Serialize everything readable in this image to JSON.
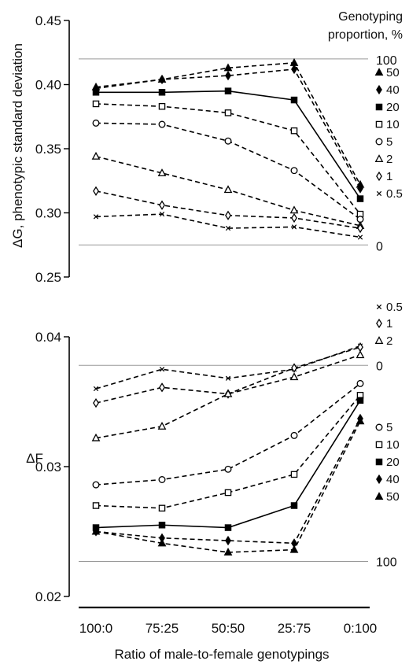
{
  "chart_data": [
    {
      "type": "line",
      "ylabel": "ΔG, phenotypic standard deviation",
      "ylim": [
        0.25,
        0.45
      ],
      "yticks": [
        "0.25",
        "0.30",
        "0.35",
        "0.40",
        "0.45"
      ],
      "categories": [
        "100:0",
        "75:25",
        "50:50",
        "25:75",
        "0:100"
      ],
      "reference_lines": [
        {
          "value": 0.42,
          "label": "100"
        },
        {
          "value": 0.275,
          "label": "0"
        }
      ],
      "legend_title": [
        "Genotyping",
        "proportion, %"
      ],
      "series": [
        {
          "name": "50",
          "marker": "filled-triangle",
          "line": "dashed",
          "values": [
            0.398,
            0.404,
            0.413,
            0.417,
            0.322
          ]
        },
        {
          "name": "40",
          "marker": "filled-diamond",
          "line": "dashed",
          "values": [
            0.397,
            0.404,
            0.407,
            0.412,
            0.319
          ]
        },
        {
          "name": "20",
          "marker": "filled-square",
          "line": "solid",
          "values": [
            0.394,
            0.394,
            0.395,
            0.388,
            0.311
          ]
        },
        {
          "name": "10",
          "marker": "open-square",
          "line": "dashed",
          "values": [
            0.385,
            0.383,
            0.378,
            0.364,
            0.299
          ]
        },
        {
          "name": "5",
          "marker": "open-circle",
          "line": "dashed",
          "values": [
            0.37,
            0.369,
            0.356,
            0.333,
            0.295
          ]
        },
        {
          "name": "2",
          "marker": "open-triangle",
          "line": "dashed",
          "values": [
            0.344,
            0.331,
            0.318,
            0.302,
            0.29
          ]
        },
        {
          "name": "1",
          "marker": "open-diamond",
          "line": "dashed",
          "values": [
            0.317,
            0.306,
            0.298,
            0.296,
            0.288
          ]
        },
        {
          "name": "0.5",
          "marker": "cross",
          "line": "dashed",
          "values": [
            0.297,
            0.299,
            0.288,
            0.289,
            0.281
          ]
        }
      ]
    },
    {
      "type": "line",
      "xlabel": "Ratio of male-to-female genotypings",
      "ylabel": "ΔF",
      "ylim": [
        0.02,
        0.04
      ],
      "yticks": [
        "0.02",
        "0.03",
        "0.04"
      ],
      "categories": [
        "100:0",
        "75:25",
        "50:50",
        "25:75",
        "0:100"
      ],
      "reference_lines": [
        {
          "value": 0.0378,
          "label": "0"
        },
        {
          "value": 0.0227,
          "label": "100"
        }
      ],
      "series": [
        {
          "name": "0.5",
          "marker": "cross",
          "line": "dashed",
          "values": [
            0.036,
            0.0375,
            0.0368,
            0.0375,
            0.0393
          ]
        },
        {
          "name": "1",
          "marker": "open-diamond",
          "line": "dashed",
          "values": [
            0.0349,
            0.0361,
            0.0356,
            0.0376,
            0.0392
          ]
        },
        {
          "name": "2",
          "marker": "open-triangle",
          "line": "dashed",
          "values": [
            0.0322,
            0.0331,
            0.0356,
            0.0369,
            0.0386
          ]
        },
        {
          "name": "5",
          "marker": "open-circle",
          "line": "dashed",
          "values": [
            0.0286,
            0.029,
            0.0298,
            0.0324,
            0.0364
          ]
        },
        {
          "name": "10",
          "marker": "open-square",
          "line": "dashed",
          "values": [
            0.027,
            0.0268,
            0.028,
            0.0294,
            0.0355
          ]
        },
        {
          "name": "20",
          "marker": "filled-square",
          "line": "solid",
          "values": [
            0.0253,
            0.0255,
            0.0253,
            0.027,
            0.0351
          ]
        },
        {
          "name": "40",
          "marker": "filled-diamond",
          "line": "dashed",
          "values": [
            0.025,
            0.0245,
            0.0243,
            0.0241,
            0.0337
          ]
        },
        {
          "name": "50",
          "marker": "filled-triangle",
          "line": "dashed",
          "values": [
            0.025,
            0.0241,
            0.0234,
            0.0236,
            0.0335
          ]
        }
      ]
    }
  ]
}
